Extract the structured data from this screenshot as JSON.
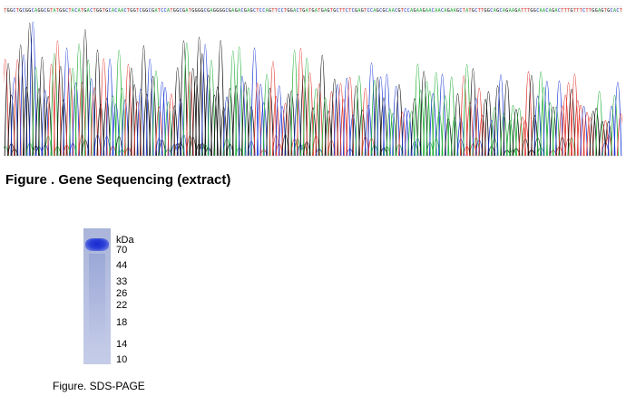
{
  "sequence_figure": {
    "caption": "Figure . Gene Sequencing (extract)",
    "base_colors": {
      "A": "#1fae38",
      "C": "#1d3bd6",
      "G": "#111111",
      "T": "#e0342c"
    },
    "sequence": "TGGCTGCGGCAGGCGTATGGCTACATGACTGGTGCACAACTGGTCGGCGATCCATGGCGATGGGGCGAGGGGCGAGACGAGCTCCAGTTCCTGGACTGATGATGAGTGCTTCTCGAGTCCAGCGCAACGTCCAGAAGAACAACAGAAGCTATGCTTGGCAGCAGAAGATTTGGCAACAGACTTTGTTTCTTGGAGTGCACT"
  },
  "gel_figure": {
    "unit_label": "kDa",
    "markers": [
      "70",
      "44",
      "33",
      "26",
      "22",
      "18",
      "14",
      "10"
    ],
    "caption": "Figure. SDS-PAGE"
  }
}
